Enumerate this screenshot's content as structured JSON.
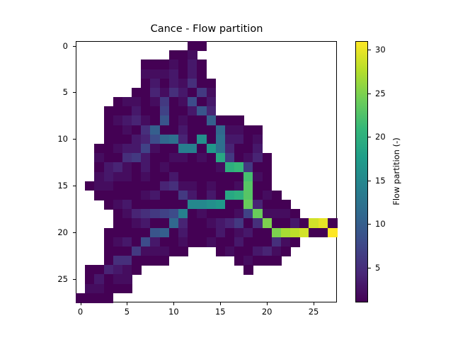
{
  "chart_data": {
    "type": "heatmap",
    "title": "Cance - Flow partition",
    "xlabel": "",
    "ylabel": "",
    "colorbar_label": "Flow partition (-)",
    "colormap": "viridis",
    "vmin": 1,
    "vmax": 31,
    "xlim": [
      -0.5,
      27.5
    ],
    "ylim": [
      27.5,
      -0.5
    ],
    "x_ticks": [
      0,
      5,
      10,
      15,
      20,
      25
    ],
    "y_ticks": [
      0,
      5,
      10,
      15,
      20,
      25
    ],
    "colorbar_ticks": [
      5,
      10,
      15,
      20,
      25,
      30
    ],
    "grid": false,
    "note": "cells listed as [row, col, value]; absent cells are NaN (white)",
    "cells": [
      [
        0,
        12,
        1
      ],
      [
        0,
        13,
        1
      ],
      [
        1,
        10,
        1
      ],
      [
        1,
        11,
        1
      ],
      [
        1,
        12,
        2
      ],
      [
        2,
        7,
        1
      ],
      [
        2,
        8,
        1
      ],
      [
        2,
        9,
        1
      ],
      [
        2,
        10,
        2
      ],
      [
        2,
        11,
        1
      ],
      [
        2,
        12,
        3
      ],
      [
        2,
        13,
        1
      ],
      [
        3,
        7,
        2
      ],
      [
        3,
        8,
        2
      ],
      [
        3,
        9,
        2
      ],
      [
        3,
        10,
        3
      ],
      [
        3,
        11,
        1
      ],
      [
        3,
        12,
        3
      ],
      [
        3,
        13,
        1
      ],
      [
        4,
        7,
        1
      ],
      [
        4,
        8,
        3
      ],
      [
        4,
        9,
        1
      ],
      [
        4,
        10,
        3
      ],
      [
        4,
        11,
        2
      ],
      [
        4,
        12,
        5
      ],
      [
        4,
        13,
        1
      ],
      [
        4,
        14,
        1
      ],
      [
        5,
        6,
        1
      ],
      [
        5,
        7,
        1
      ],
      [
        5,
        8,
        4
      ],
      [
        5,
        9,
        2
      ],
      [
        5,
        10,
        5
      ],
      [
        5,
        11,
        3
      ],
      [
        5,
        12,
        1
      ],
      [
        5,
        13,
        6
      ],
      [
        5,
        14,
        2
      ],
      [
        6,
        4,
        1
      ],
      [
        6,
        5,
        2
      ],
      [
        6,
        6,
        2
      ],
      [
        6,
        7,
        1
      ],
      [
        6,
        8,
        2
      ],
      [
        6,
        9,
        6
      ],
      [
        6,
        10,
        1
      ],
      [
        6,
        11,
        2
      ],
      [
        6,
        12,
        8
      ],
      [
        6,
        13,
        1
      ],
      [
        6,
        14,
        3
      ],
      [
        7,
        3,
        1
      ],
      [
        7,
        4,
        1
      ],
      [
        7,
        5,
        1
      ],
      [
        7,
        6,
        3
      ],
      [
        7,
        7,
        1
      ],
      [
        7,
        8,
        1
      ],
      [
        7,
        9,
        7
      ],
      [
        7,
        10,
        1
      ],
      [
        7,
        11,
        1
      ],
      [
        7,
        12,
        3
      ],
      [
        7,
        13,
        9
      ],
      [
        7,
        14,
        4
      ],
      [
        8,
        3,
        1
      ],
      [
        8,
        4,
        2
      ],
      [
        8,
        5,
        3
      ],
      [
        8,
        6,
        4
      ],
      [
        8,
        7,
        2
      ],
      [
        8,
        8,
        1
      ],
      [
        8,
        9,
        9
      ],
      [
        8,
        10,
        1
      ],
      [
        8,
        11,
        2
      ],
      [
        8,
        12,
        1
      ],
      [
        8,
        13,
        1
      ],
      [
        8,
        14,
        10
      ],
      [
        8,
        15,
        1
      ],
      [
        8,
        16,
        1
      ],
      [
        8,
        17,
        1
      ],
      [
        9,
        3,
        1
      ],
      [
        9,
        4,
        1
      ],
      [
        9,
        5,
        2
      ],
      [
        9,
        6,
        1
      ],
      [
        9,
        7,
        5
      ],
      [
        9,
        8,
        10
      ],
      [
        9,
        9,
        1
      ],
      [
        9,
        10,
        1
      ],
      [
        9,
        11,
        3
      ],
      [
        9,
        12,
        1
      ],
      [
        9,
        13,
        1
      ],
      [
        9,
        14,
        1
      ],
      [
        9,
        15,
        11
      ],
      [
        9,
        16,
        2
      ],
      [
        9,
        17,
        2
      ],
      [
        9,
        18,
        1
      ],
      [
        9,
        19,
        1
      ],
      [
        10,
        3,
        1
      ],
      [
        10,
        4,
        1
      ],
      [
        10,
        5,
        1
      ],
      [
        10,
        6,
        3
      ],
      [
        10,
        7,
        4
      ],
      [
        10,
        8,
        8
      ],
      [
        10,
        9,
        11
      ],
      [
        10,
        10,
        12
      ],
      [
        10,
        11,
        4
      ],
      [
        10,
        12,
        1
      ],
      [
        10,
        13,
        16
      ],
      [
        10,
        14,
        1
      ],
      [
        10,
        15,
        12
      ],
      [
        10,
        16,
        3
      ],
      [
        10,
        17,
        3
      ],
      [
        10,
        18,
        1
      ],
      [
        10,
        19,
        2
      ],
      [
        11,
        2,
        1
      ],
      [
        11,
        3,
        1
      ],
      [
        11,
        4,
        2
      ],
      [
        11,
        5,
        3
      ],
      [
        11,
        6,
        3
      ],
      [
        11,
        7,
        7
      ],
      [
        11,
        8,
        2
      ],
      [
        11,
        9,
        1
      ],
      [
        11,
        10,
        1
      ],
      [
        11,
        11,
        14
      ],
      [
        11,
        12,
        14
      ],
      [
        11,
        13,
        1
      ],
      [
        11,
        14,
        17
      ],
      [
        11,
        15,
        12
      ],
      [
        11,
        16,
        4
      ],
      [
        11,
        17,
        1
      ],
      [
        11,
        18,
        1
      ],
      [
        11,
        19,
        3
      ],
      [
        12,
        2,
        2
      ],
      [
        12,
        3,
        1
      ],
      [
        12,
        4,
        1
      ],
      [
        12,
        5,
        5
      ],
      [
        12,
        6,
        6
      ],
      [
        12,
        7,
        3
      ],
      [
        12,
        8,
        1
      ],
      [
        12,
        9,
        1
      ],
      [
        12,
        10,
        2
      ],
      [
        12,
        11,
        2
      ],
      [
        12,
        12,
        1
      ],
      [
        12,
        13,
        2
      ],
      [
        12,
        14,
        1
      ],
      [
        12,
        15,
        19
      ],
      [
        12,
        16,
        6
      ],
      [
        12,
        17,
        1
      ],
      [
        12,
        18,
        2
      ],
      [
        12,
        19,
        4
      ],
      [
        12,
        20,
        1
      ],
      [
        13,
        2,
        1
      ],
      [
        13,
        3,
        3
      ],
      [
        13,
        4,
        4
      ],
      [
        13,
        5,
        2
      ],
      [
        13,
        6,
        1
      ],
      [
        13,
        7,
        3
      ],
      [
        13,
        8,
        1
      ],
      [
        13,
        9,
        2
      ],
      [
        13,
        10,
        1
      ],
      [
        13,
        11,
        1
      ],
      [
        13,
        12,
        1
      ],
      [
        13,
        13,
        1
      ],
      [
        13,
        14,
        1
      ],
      [
        13,
        15,
        2
      ],
      [
        13,
        16,
        20
      ],
      [
        13,
        17,
        21
      ],
      [
        13,
        18,
        6
      ],
      [
        13,
        19,
        1
      ],
      [
        13,
        20,
        1
      ],
      [
        14,
        2,
        2
      ],
      [
        14,
        3,
        3
      ],
      [
        14,
        4,
        2
      ],
      [
        14,
        5,
        2
      ],
      [
        14,
        6,
        1
      ],
      [
        14,
        7,
        2
      ],
      [
        14,
        8,
        1
      ],
      [
        14,
        9,
        1
      ],
      [
        14,
        10,
        3
      ],
      [
        14,
        11,
        1
      ],
      [
        14,
        12,
        1
      ],
      [
        14,
        13,
        1
      ],
      [
        14,
        14,
        1
      ],
      [
        14,
        15,
        1
      ],
      [
        14,
        16,
        1
      ],
      [
        14,
        17,
        1
      ],
      [
        14,
        18,
        22
      ],
      [
        14,
        19,
        2
      ],
      [
        14,
        20,
        1
      ],
      [
        15,
        1,
        1
      ],
      [
        15,
        2,
        2
      ],
      [
        15,
        3,
        2
      ],
      [
        15,
        4,
        1
      ],
      [
        15,
        5,
        1
      ],
      [
        15,
        6,
        1
      ],
      [
        15,
        7,
        1
      ],
      [
        15,
        8,
        1
      ],
      [
        15,
        9,
        4
      ],
      [
        15,
        10,
        5
      ],
      [
        15,
        11,
        2
      ],
      [
        15,
        12,
        2
      ],
      [
        15,
        13,
        1
      ],
      [
        15,
        14,
        2
      ],
      [
        15,
        15,
        1
      ],
      [
        15,
        16,
        1
      ],
      [
        15,
        17,
        2
      ],
      [
        15,
        18,
        23
      ],
      [
        15,
        19,
        1
      ],
      [
        15,
        20,
        1
      ],
      [
        16,
        2,
        1
      ],
      [
        16,
        3,
        1
      ],
      [
        16,
        4,
        1
      ],
      [
        16,
        5,
        1
      ],
      [
        16,
        6,
        1
      ],
      [
        16,
        7,
        2
      ],
      [
        16,
        8,
        3
      ],
      [
        16,
        9,
        1
      ],
      [
        16,
        10,
        1
      ],
      [
        16,
        11,
        6
      ],
      [
        16,
        12,
        3
      ],
      [
        16,
        13,
        1
      ],
      [
        16,
        14,
        3
      ],
      [
        16,
        15,
        1
      ],
      [
        16,
        16,
        19
      ],
      [
        16,
        17,
        20
      ],
      [
        16,
        18,
        23
      ],
      [
        16,
        19,
        1
      ],
      [
        16,
        20,
        2
      ],
      [
        16,
        21,
        1
      ],
      [
        17,
        3,
        1
      ],
      [
        17,
        4,
        2
      ],
      [
        17,
        5,
        3
      ],
      [
        17,
        6,
        1
      ],
      [
        17,
        7,
        1
      ],
      [
        17,
        8,
        1
      ],
      [
        17,
        9,
        1
      ],
      [
        17,
        10,
        1
      ],
      [
        17,
        11,
        1
      ],
      [
        17,
        12,
        15
      ],
      [
        17,
        13,
        15
      ],
      [
        17,
        14,
        16
      ],
      [
        17,
        15,
        17
      ],
      [
        17,
        16,
        1
      ],
      [
        17,
        17,
        1
      ],
      [
        17,
        18,
        24
      ],
      [
        17,
        19,
        4
      ],
      [
        17,
        20,
        1
      ],
      [
        17,
        21,
        1
      ],
      [
        17,
        22,
        1
      ],
      [
        18,
        4,
        1
      ],
      [
        18,
        5,
        2
      ],
      [
        18,
        6,
        4
      ],
      [
        18,
        7,
        5
      ],
      [
        18,
        8,
        6
      ],
      [
        18,
        9,
        7
      ],
      [
        18,
        10,
        8
      ],
      [
        18,
        11,
        14
      ],
      [
        18,
        12,
        1
      ],
      [
        18,
        13,
        2
      ],
      [
        18,
        14,
        1
      ],
      [
        18,
        15,
        1
      ],
      [
        18,
        16,
        1
      ],
      [
        18,
        17,
        2
      ],
      [
        18,
        18,
        7
      ],
      [
        18,
        19,
        24
      ],
      [
        18,
        20,
        2
      ],
      [
        18,
        21,
        2
      ],
      [
        18,
        22,
        2
      ],
      [
        18,
        23,
        1
      ],
      [
        19,
        4,
        1
      ],
      [
        19,
        5,
        1
      ],
      [
        19,
        6,
        2
      ],
      [
        19,
        7,
        3
      ],
      [
        19,
        8,
        1
      ],
      [
        19,
        9,
        1
      ],
      [
        19,
        10,
        11
      ],
      [
        19,
        11,
        4
      ],
      [
        19,
        12,
        1
      ],
      [
        19,
        13,
        1
      ],
      [
        19,
        14,
        2
      ],
      [
        19,
        15,
        3
      ],
      [
        19,
        16,
        4
      ],
      [
        19,
        17,
        6
      ],
      [
        19,
        18,
        1
      ],
      [
        19,
        19,
        5
      ],
      [
        19,
        20,
        25
      ],
      [
        19,
        21,
        1
      ],
      [
        19,
        22,
        1
      ],
      [
        19,
        23,
        3
      ],
      [
        19,
        24,
        1
      ],
      [
        19,
        25,
        29
      ],
      [
        19,
        26,
        30
      ],
      [
        19,
        27,
        1
      ],
      [
        20,
        3,
        1
      ],
      [
        20,
        4,
        1
      ],
      [
        20,
        5,
        1
      ],
      [
        20,
        6,
        1
      ],
      [
        20,
        7,
        1
      ],
      [
        20,
        8,
        9
      ],
      [
        20,
        9,
        10
      ],
      [
        20,
        10,
        1
      ],
      [
        20,
        11,
        3
      ],
      [
        20,
        12,
        1
      ],
      [
        20,
        13,
        1
      ],
      [
        20,
        14,
        1
      ],
      [
        20,
        15,
        3
      ],
      [
        20,
        16,
        1
      ],
      [
        20,
        17,
        2
      ],
      [
        20,
        18,
        3
      ],
      [
        20,
        19,
        1
      ],
      [
        20,
        20,
        1
      ],
      [
        20,
        21,
        25
      ],
      [
        20,
        22,
        27
      ],
      [
        20,
        23,
        28
      ],
      [
        20,
        24,
        29
      ],
      [
        20,
        25,
        1
      ],
      [
        20,
        26,
        1
      ],
      [
        20,
        27,
        31
      ],
      [
        21,
        3,
        1
      ],
      [
        21,
        4,
        2
      ],
      [
        21,
        5,
        3
      ],
      [
        21,
        6,
        1
      ],
      [
        21,
        7,
        8
      ],
      [
        21,
        8,
        3
      ],
      [
        21,
        9,
        1
      ],
      [
        21,
        10,
        1
      ],
      [
        21,
        11,
        2
      ],
      [
        21,
        12,
        1
      ],
      [
        21,
        13,
        1
      ],
      [
        21,
        14,
        2
      ],
      [
        21,
        15,
        1
      ],
      [
        21,
        16,
        1
      ],
      [
        21,
        17,
        3
      ],
      [
        21,
        18,
        1
      ],
      [
        21,
        19,
        1
      ],
      [
        21,
        20,
        1
      ],
      [
        21,
        21,
        5
      ],
      [
        21,
        22,
        2
      ],
      [
        21,
        23,
        1
      ],
      [
        22,
        3,
        1
      ],
      [
        22,
        4,
        1
      ],
      [
        22,
        5,
        1
      ],
      [
        22,
        6,
        6
      ],
      [
        22,
        7,
        2
      ],
      [
        22,
        8,
        2
      ],
      [
        22,
        9,
        2
      ],
      [
        22,
        10,
        1
      ],
      [
        22,
        11,
        1
      ],
      [
        22,
        15,
        1
      ],
      [
        22,
        16,
        2
      ],
      [
        22,
        17,
        1
      ],
      [
        22,
        18,
        1
      ],
      [
        22,
        19,
        3
      ],
      [
        22,
        20,
        4
      ],
      [
        22,
        21,
        2
      ],
      [
        22,
        22,
        1
      ],
      [
        23,
        3,
        1
      ],
      [
        23,
        4,
        5
      ],
      [
        23,
        5,
        5
      ],
      [
        23,
        6,
        1
      ],
      [
        23,
        7,
        1
      ],
      [
        23,
        8,
        1
      ],
      [
        23,
        9,
        1
      ],
      [
        23,
        17,
        1
      ],
      [
        23,
        18,
        2
      ],
      [
        23,
        19,
        1
      ],
      [
        23,
        20,
        1
      ],
      [
        23,
        21,
        1
      ],
      [
        24,
        1,
        1
      ],
      [
        24,
        2,
        1
      ],
      [
        24,
        3,
        4
      ],
      [
        24,
        4,
        3
      ],
      [
        24,
        5,
        2
      ],
      [
        24,
        6,
        1
      ],
      [
        24,
        18,
        1
      ],
      [
        25,
        1,
        1
      ],
      [
        25,
        2,
        3
      ],
      [
        25,
        3,
        1
      ],
      [
        25,
        4,
        2
      ],
      [
        25,
        5,
        2
      ],
      [
        26,
        1,
        2
      ],
      [
        26,
        2,
        2
      ],
      [
        26,
        3,
        1
      ],
      [
        26,
        4,
        1
      ],
      [
        26,
        5,
        1
      ],
      [
        27,
        0,
        1
      ],
      [
        27,
        1,
        1
      ],
      [
        27,
        2,
        1
      ],
      [
        27,
        3,
        1
      ]
    ]
  }
}
